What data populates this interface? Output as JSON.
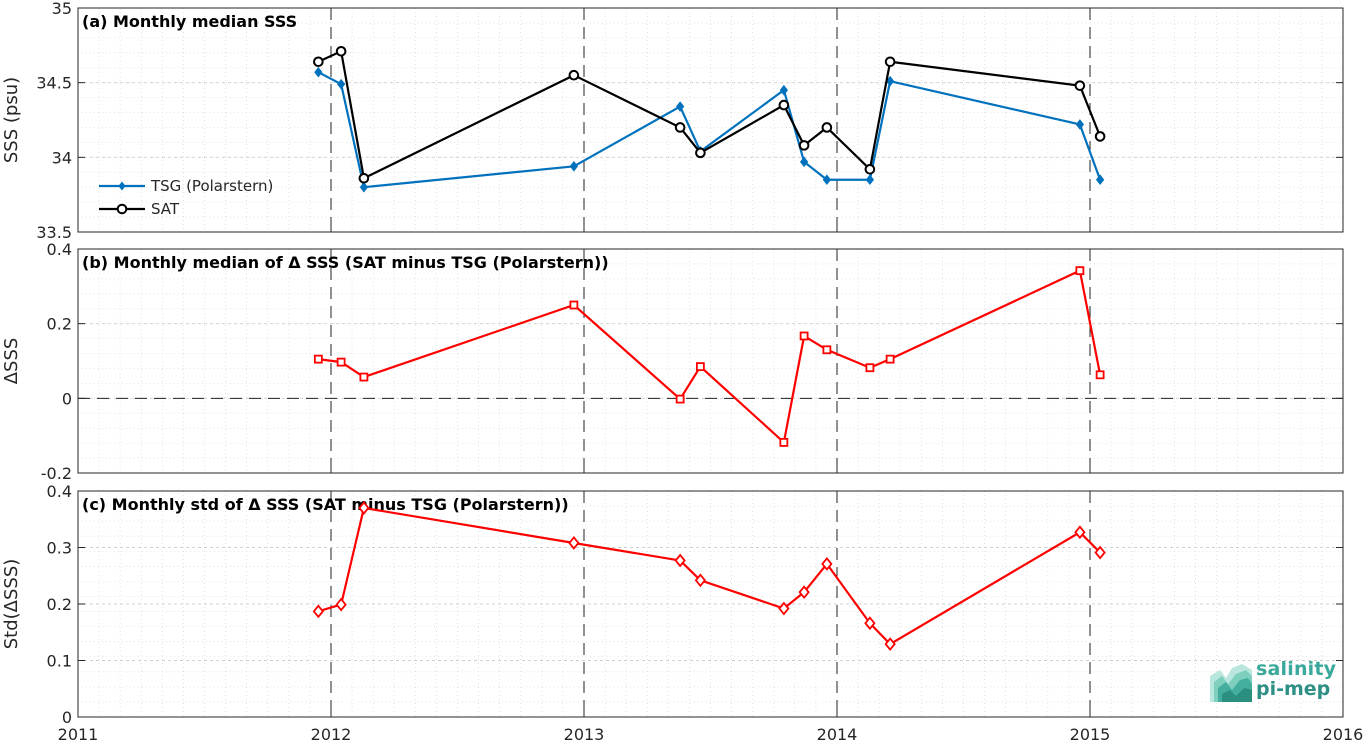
{
  "x_ticks": [
    "2011",
    "2012",
    "2013",
    "2014",
    "2015",
    "2016"
  ],
  "chart_data": [
    {
      "type": "line",
      "title": "(a) Monthly median SSS",
      "ylabel": "SSS (psu)",
      "xlim": [
        2011,
        2016
      ],
      "ylim": [
        33.5,
        35
      ],
      "yticks": [
        "33.5",
        "34",
        "34.5",
        "35"
      ],
      "yticks_values": [
        33.5,
        34,
        34.5,
        35
      ],
      "legend": "left",
      "series": [
        {
          "name": "TSG (Polarstern)",
          "color": "#0072BD",
          "marker": "diamond-filled",
          "x": [
            2011.95,
            2012.04,
            2012.13,
            2012.96,
            2013.38,
            2013.46,
            2013.79,
            2013.87,
            2013.96,
            2014.13,
            2014.21,
            2014.96,
            2015.04
          ],
          "y": [
            34.57,
            34.49,
            33.8,
            33.94,
            34.34,
            34.04,
            34.45,
            33.97,
            33.85,
            33.85,
            34.51,
            34.22,
            33.85
          ]
        },
        {
          "name": "SAT",
          "color": "#000000",
          "marker": "circle-open",
          "x": [
            2011.95,
            2012.04,
            2012.13,
            2012.96,
            2013.38,
            2013.46,
            2013.79,
            2013.87,
            2013.96,
            2014.13,
            2014.21,
            2014.96,
            2015.04
          ],
          "y": [
            34.64,
            34.71,
            33.86,
            34.55,
            34.2,
            34.03,
            34.35,
            34.08,
            34.2,
            33.92,
            34.64,
            34.48,
            34.14
          ]
        }
      ]
    },
    {
      "type": "line",
      "title": "(b) Monthly median of Δ SSS (SAT minus TSG (Polarstern))",
      "ylabel": "ΔSSS",
      "xlim": [
        2011,
        2016
      ],
      "ylim": [
        -0.2,
        0.4
      ],
      "yticks": [
        "-0.2",
        "0",
        "0.2",
        "0.4"
      ],
      "yticks_values": [
        -0.2,
        0,
        0.2,
        0.4
      ],
      "series": [
        {
          "color": "#FF0000",
          "marker": "square-open",
          "x": [
            2011.95,
            2012.04,
            2012.13,
            2012.96,
            2013.38,
            2013.46,
            2013.79,
            2013.87,
            2013.96,
            2014.13,
            2014.21,
            2014.96,
            2015.04
          ],
          "y": [
            0.105,
            0.097,
            0.057,
            0.25,
            -0.002,
            0.085,
            -0.118,
            0.167,
            0.13,
            0.082,
            0.105,
            0.342,
            0.063
          ]
        }
      ]
    },
    {
      "type": "line",
      "title": "(c) Monthly std of Δ SSS (SAT minus TSG (Polarstern))",
      "ylabel": "Std(ΔSSS)",
      "xlim": [
        2011,
        2016
      ],
      "ylim": [
        0,
        0.4
      ],
      "yticks": [
        "0",
        "0.1",
        "0.2",
        "0.3",
        "0.4"
      ],
      "yticks_values": [
        0,
        0.1,
        0.2,
        0.3,
        0.4
      ],
      "series": [
        {
          "color": "#FF0000",
          "marker": "diamond-open",
          "x": [
            2011.95,
            2012.04,
            2012.13,
            2012.96,
            2013.38,
            2013.46,
            2013.79,
            2013.87,
            2013.96,
            2014.13,
            2014.21,
            2014.96,
            2015.04
          ],
          "y": [
            0.187,
            0.199,
            0.37,
            0.308,
            0.277,
            0.242,
            0.192,
            0.221,
            0.271,
            0.166,
            0.129,
            0.327,
            0.291
          ]
        }
      ]
    }
  ],
  "logo": {
    "line1": "salinity",
    "line2": "pi-mep"
  }
}
